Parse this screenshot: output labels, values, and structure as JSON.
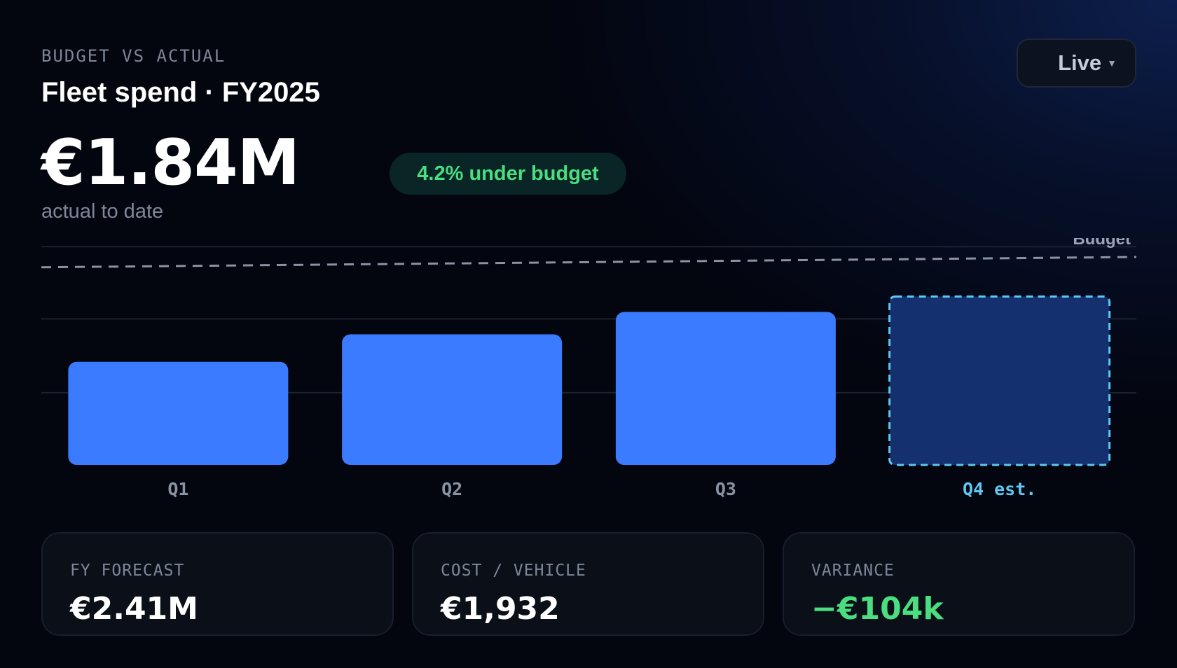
{
  "header": {
    "eyebrow": "BUDGET VS ACTUAL",
    "title": "Fleet spend · FY2025",
    "big_value": "€1.84M",
    "big_caption": "actual to date",
    "badge": "4.2% under budget",
    "mode_label": "Live"
  },
  "chart_data": {
    "type": "bar",
    "categories": [
      "Q1",
      "Q2",
      "Q3",
      "Q4 est."
    ],
    "series": [
      {
        "name": "",
        "values": [
          0.3,
          0.38,
          0.445,
          0.49
        ]
      }
    ],
    "budget_line": {
      "label": "Budget",
      "start": 0.575,
      "end": 0.605
    },
    "estimated_categories": [
      "Q4 est."
    ],
    "ylim": [
      0,
      0.66
    ],
    "grid": true,
    "colors": {
      "actual": "#3b7bff",
      "estimate_fill": "#14306e",
      "estimate_border": "#5ec8f2",
      "budget": "#8a93a3"
    }
  },
  "cards": [
    {
      "label": "FY FORECAST",
      "value": "€2.41M",
      "tone": "neutral"
    },
    {
      "label": "COST / VEHICLE",
      "value": "€1,932",
      "tone": "neutral"
    },
    {
      "label": "VARIANCE",
      "value": "−€104k",
      "tone": "positive"
    }
  ]
}
